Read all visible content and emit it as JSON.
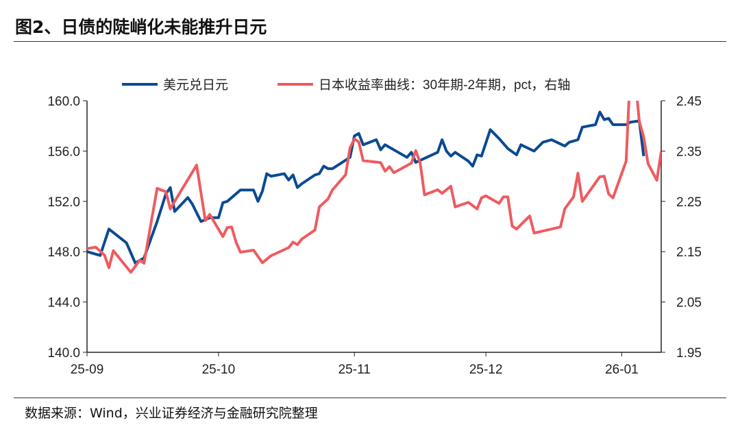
{
  "title": "图2、日债的陡峭化未能推升日元",
  "source": "数据来源：Wind，兴业证券经济与金融研究院整理",
  "chart_data": {
    "type": "line",
    "title": "图2、日债的陡峭化未能推升日元",
    "x_ticks": [
      "25-09",
      "25-10",
      "25-11",
      "25-12",
      "26-01"
    ],
    "x_tick_dates": [
      "2025-09-01",
      "2025-10-01",
      "2025-11-01",
      "2025-12-01",
      "2026-01-01"
    ],
    "xlim": [
      "2025-09-01",
      "2026-01-10"
    ],
    "y_left": {
      "ylim": [
        140,
        160
      ],
      "ticks": [
        "140.0",
        "144.0",
        "148.0",
        "152.0",
        "156.0",
        "160.0"
      ]
    },
    "y_right": {
      "ylim": [
        1.95,
        2.45
      ],
      "ticks": [
        "1.95",
        "2.05",
        "2.15",
        "2.25",
        "2.35",
        "2.45"
      ]
    },
    "legend_position": "top",
    "grid": false,
    "series": [
      {
        "name": "美元兑日元",
        "axis": "left",
        "color": "#0b4a92",
        "points": [
          [
            "2025-09-01",
            148.0
          ],
          [
            "2025-09-04",
            147.7
          ],
          [
            "2025-09-06",
            149.8
          ],
          [
            "2025-09-10",
            148.7
          ],
          [
            "2025-09-12",
            147.1
          ],
          [
            "2025-09-14",
            147.5
          ],
          [
            "2025-09-17",
            150.4
          ],
          [
            "2025-09-19",
            152.6
          ],
          [
            "2025-09-20",
            153.1
          ],
          [
            "2025-09-21",
            151.2
          ],
          [
            "2025-09-24",
            152.3
          ],
          [
            "2025-09-25",
            151.8
          ],
          [
            "2025-09-27",
            150.4
          ],
          [
            "2025-09-29",
            150.7
          ],
          [
            "2025-10-01",
            150.7
          ],
          [
            "2025-10-02",
            151.9
          ],
          [
            "2025-10-03",
            152.0
          ],
          [
            "2025-10-06",
            152.9
          ],
          [
            "2025-10-09",
            152.9
          ],
          [
            "2025-10-10",
            152.0
          ],
          [
            "2025-10-11",
            152.8
          ],
          [
            "2025-10-12",
            154.2
          ],
          [
            "2025-10-13",
            154.0
          ],
          [
            "2025-10-16",
            154.2
          ],
          [
            "2025-10-17",
            153.7
          ],
          [
            "2025-10-18",
            154.1
          ],
          [
            "2025-10-19",
            153.1
          ],
          [
            "2025-10-20",
            153.4
          ],
          [
            "2025-10-23",
            154.1
          ],
          [
            "2025-10-24",
            154.2
          ],
          [
            "2025-10-25",
            154.8
          ],
          [
            "2025-10-26",
            154.6
          ],
          [
            "2025-10-27",
            154.6
          ],
          [
            "2025-10-31",
            155.5
          ],
          [
            "2025-11-01",
            157.2
          ],
          [
            "2025-11-02",
            157.4
          ],
          [
            "2025-11-03",
            156.5
          ],
          [
            "2025-11-06",
            156.9
          ],
          [
            "2025-11-07",
            156.1
          ],
          [
            "2025-11-08",
            156.5
          ],
          [
            "2025-11-10",
            156.1
          ],
          [
            "2025-11-13",
            155.5
          ],
          [
            "2025-11-14",
            155.9
          ],
          [
            "2025-11-15",
            155.1
          ],
          [
            "2025-11-20",
            155.9
          ],
          [
            "2025-11-21",
            156.9
          ],
          [
            "2025-11-22",
            156.0
          ],
          [
            "2025-11-23",
            155.6
          ],
          [
            "2025-11-24",
            155.9
          ],
          [
            "2025-11-27",
            155.2
          ],
          [
            "2025-11-28",
            154.8
          ],
          [
            "2025-11-29",
            155.7
          ],
          [
            "2025-11-30",
            155.6
          ],
          [
            "2025-12-02",
            157.7
          ],
          [
            "2025-12-04",
            157.0
          ],
          [
            "2025-12-06",
            156.2
          ],
          [
            "2025-12-08",
            155.7
          ],
          [
            "2025-12-09",
            156.5
          ],
          [
            "2025-12-12",
            156.0
          ],
          [
            "2025-12-14",
            156.7
          ],
          [
            "2025-12-16",
            156.9
          ],
          [
            "2025-12-19",
            156.4
          ],
          [
            "2025-12-20",
            156.7
          ],
          [
            "2025-12-22",
            156.9
          ],
          [
            "2025-12-23",
            157.9
          ],
          [
            "2025-12-26",
            158.1
          ],
          [
            "2025-12-27",
            159.1
          ],
          [
            "2025-12-28",
            158.5
          ],
          [
            "2025-12-29",
            158.6
          ],
          [
            "2025-12-30",
            158.1
          ],
          [
            "2026-01-02",
            158.1
          ],
          [
            "2026-01-03",
            158.3
          ],
          [
            "2026-01-05",
            158.4
          ],
          [
            "2026-01-06",
            155.6
          ]
        ]
      },
      {
        "name": "日本收益率曲线：30年期-2年期，pct，右轴",
        "axis": "right",
        "color": "#ee5b60",
        "points": [
          [
            "2025-09-01",
            2.156
          ],
          [
            "2025-09-03",
            2.159
          ],
          [
            "2025-09-05",
            2.143
          ],
          [
            "2025-09-06",
            2.118
          ],
          [
            "2025-09-07",
            2.152
          ],
          [
            "2025-09-11",
            2.109
          ],
          [
            "2025-09-13",
            2.133
          ],
          [
            "2025-09-14",
            2.127
          ],
          [
            "2025-09-17",
            2.276
          ],
          [
            "2025-09-19",
            2.269
          ],
          [
            "2025-09-20",
            2.235
          ],
          [
            "2025-09-21",
            2.25
          ],
          [
            "2025-09-26",
            2.322
          ],
          [
            "2025-09-28",
            2.212
          ],
          [
            "2025-09-29",
            2.224
          ],
          [
            "2025-10-02",
            2.18
          ],
          [
            "2025-10-03",
            2.198
          ],
          [
            "2025-10-04",
            2.199
          ],
          [
            "2025-10-05",
            2.169
          ],
          [
            "2025-10-06",
            2.149
          ],
          [
            "2025-10-09",
            2.153
          ],
          [
            "2025-10-11",
            2.128
          ],
          [
            "2025-10-13",
            2.142
          ],
          [
            "2025-10-17",
            2.158
          ],
          [
            "2025-10-18",
            2.169
          ],
          [
            "2025-10-19",
            2.164
          ],
          [
            "2025-10-20",
            2.175
          ],
          [
            "2025-10-23",
            2.193
          ],
          [
            "2025-10-24",
            2.239
          ],
          [
            "2025-10-26",
            2.255
          ],
          [
            "2025-10-27",
            2.273
          ],
          [
            "2025-10-30",
            2.303
          ],
          [
            "2025-10-31",
            2.356
          ],
          [
            "2025-11-01",
            2.374
          ],
          [
            "2025-11-02",
            2.368
          ],
          [
            "2025-11-03",
            2.331
          ],
          [
            "2025-11-07",
            2.327
          ],
          [
            "2025-11-08",
            2.31
          ],
          [
            "2025-11-09",
            2.319
          ],
          [
            "2025-11-10",
            2.307
          ],
          [
            "2025-11-14",
            2.326
          ],
          [
            "2025-11-15",
            2.351
          ],
          [
            "2025-11-16",
            2.327
          ],
          [
            "2025-11-17",
            2.263
          ],
          [
            "2025-11-20",
            2.273
          ],
          [
            "2025-11-21",
            2.266
          ],
          [
            "2025-11-23",
            2.28
          ],
          [
            "2025-11-24",
            2.239
          ],
          [
            "2025-11-27",
            2.248
          ],
          [
            "2025-11-29",
            2.235
          ],
          [
            "2025-11-30",
            2.257
          ],
          [
            "2025-12-01",
            2.261
          ],
          [
            "2025-12-04",
            2.246
          ],
          [
            "2025-12-05",
            2.259
          ],
          [
            "2025-12-06",
            2.259
          ],
          [
            "2025-12-07",
            2.201
          ],
          [
            "2025-12-08",
            2.195
          ],
          [
            "2025-12-11",
            2.221
          ],
          [
            "2025-12-12",
            2.187
          ],
          [
            "2025-12-18",
            2.199
          ],
          [
            "2025-12-19",
            2.235
          ],
          [
            "2025-12-21",
            2.259
          ],
          [
            "2025-12-22",
            2.306
          ],
          [
            "2025-12-23",
            2.25
          ],
          [
            "2025-12-27",
            2.299
          ],
          [
            "2025-12-28",
            2.3
          ],
          [
            "2025-12-29",
            2.265
          ],
          [
            "2025-12-30",
            2.257
          ],
          [
            "2026-01-02",
            2.33
          ],
          [
            "2026-01-03",
            2.52
          ],
          [
            "2026-01-04",
            2.5
          ],
          [
            "2026-01-05",
            2.409
          ],
          [
            "2026-01-06",
            2.378
          ],
          [
            "2026-01-07",
            2.325
          ],
          [
            "2026-01-09",
            2.292
          ],
          [
            "2026-01-10",
            2.349
          ]
        ]
      }
    ]
  }
}
